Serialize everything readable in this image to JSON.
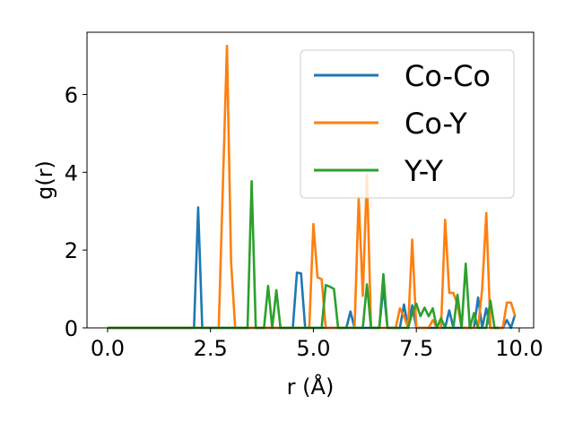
{
  "chart_data": {
    "type": "line",
    "xlabel": "r (Å)",
    "ylabel": "g(r)",
    "xlim": [
      -0.5,
      10.35
    ],
    "ylim": [
      0,
      7.6
    ],
    "xticks": [
      0.0,
      2.5,
      5.0,
      7.5,
      10.0
    ],
    "xtick_labels": [
      "0.0",
      "2.5",
      "5.0",
      "7.5",
      "10.0"
    ],
    "yticks": [
      0,
      2,
      4,
      6
    ],
    "ytick_labels": [
      "0",
      "2",
      "4",
      "6"
    ],
    "grid": false,
    "legend_position": "top-right",
    "series": [
      {
        "name": "Co-Co",
        "color": "#1f77b4",
        "x": [
          0.0,
          2.1,
          2.2,
          2.3,
          4.5,
          4.6,
          4.7,
          4.8,
          5.8,
          5.9,
          6.0,
          6.6,
          6.7,
          6.8,
          7.1,
          7.2,
          7.3,
          7.4,
          7.5,
          8.2,
          8.3,
          8.4,
          8.9,
          9.0,
          9.1,
          9.2,
          9.3,
          9.6,
          9.7,
          9.8,
          9.9
        ],
        "y": [
          0.0,
          0.0,
          3.1,
          0.0,
          0.0,
          1.42,
          1.4,
          0.0,
          0.0,
          0.42,
          0.0,
          0.0,
          1.05,
          0.0,
          0.0,
          0.6,
          0.0,
          0.58,
          0.0,
          0.0,
          0.45,
          0.0,
          0.0,
          0.78,
          0.0,
          0.5,
          0.0,
          0.0,
          0.2,
          0.0,
          0.35
        ]
      },
      {
        "name": "Co-Y",
        "color": "#ff7f0e",
        "x": [
          0.0,
          2.7,
          2.9,
          3.0,
          3.1,
          4.9,
          5.0,
          5.1,
          5.2,
          5.3,
          6.0,
          6.1,
          6.2,
          6.3,
          6.4,
          7.0,
          7.1,
          7.2,
          7.3,
          7.4,
          7.5,
          7.8,
          7.9,
          8.0,
          8.1,
          8.2,
          8.3,
          8.4,
          8.5,
          8.6,
          8.7,
          9.0,
          9.1,
          9.2,
          9.3,
          9.6,
          9.7,
          9.8,
          9.9
        ],
        "y": [
          0.0,
          0.0,
          7.25,
          1.7,
          0.0,
          0.0,
          2.67,
          1.3,
          1.25,
          0.0,
          0.0,
          3.35,
          0.82,
          3.95,
          0.0,
          0.0,
          0.5,
          0.3,
          0.0,
          2.27,
          0.0,
          0.0,
          0.2,
          0.0,
          0.0,
          2.78,
          0.9,
          0.9,
          0.6,
          0.0,
          0.0,
          0.0,
          1.0,
          2.95,
          0.0,
          0.0,
          0.65,
          0.65,
          0.3
        ]
      },
      {
        "name": "Y-Y",
        "color": "#2ca02c",
        "x": [
          0.0,
          3.4,
          3.5,
          3.6,
          3.8,
          3.9,
          4.0,
          4.1,
          4.2,
          5.2,
          5.3,
          5.4,
          5.5,
          5.6,
          6.2,
          6.3,
          6.4,
          6.6,
          6.7,
          6.8,
          7.1,
          7.2,
          7.3,
          7.4,
          7.5,
          7.6,
          7.7,
          7.8,
          7.9,
          8.0,
          8.1,
          8.2,
          8.4,
          8.5,
          8.6,
          8.7,
          8.8,
          8.9,
          9.0,
          9.1,
          9.2,
          9.3,
          9.4,
          9.5
        ],
        "y": [
          0.0,
          0.0,
          3.77,
          0.0,
          0.0,
          1.08,
          0.0,
          0.97,
          0.0,
          0.0,
          1.1,
          1.06,
          1.0,
          0.0,
          0.0,
          1.12,
          0.0,
          0.0,
          1.38,
          0.0,
          0.0,
          0.0,
          0.0,
          0.38,
          0.62,
          0.3,
          0.52,
          0.3,
          0.5,
          0.0,
          0.25,
          0.0,
          0.0,
          0.85,
          0.0,
          1.65,
          0.0,
          0.38,
          0.0,
          0.0,
          0.0,
          0.7,
          0.0,
          0.0
        ]
      }
    ]
  }
}
